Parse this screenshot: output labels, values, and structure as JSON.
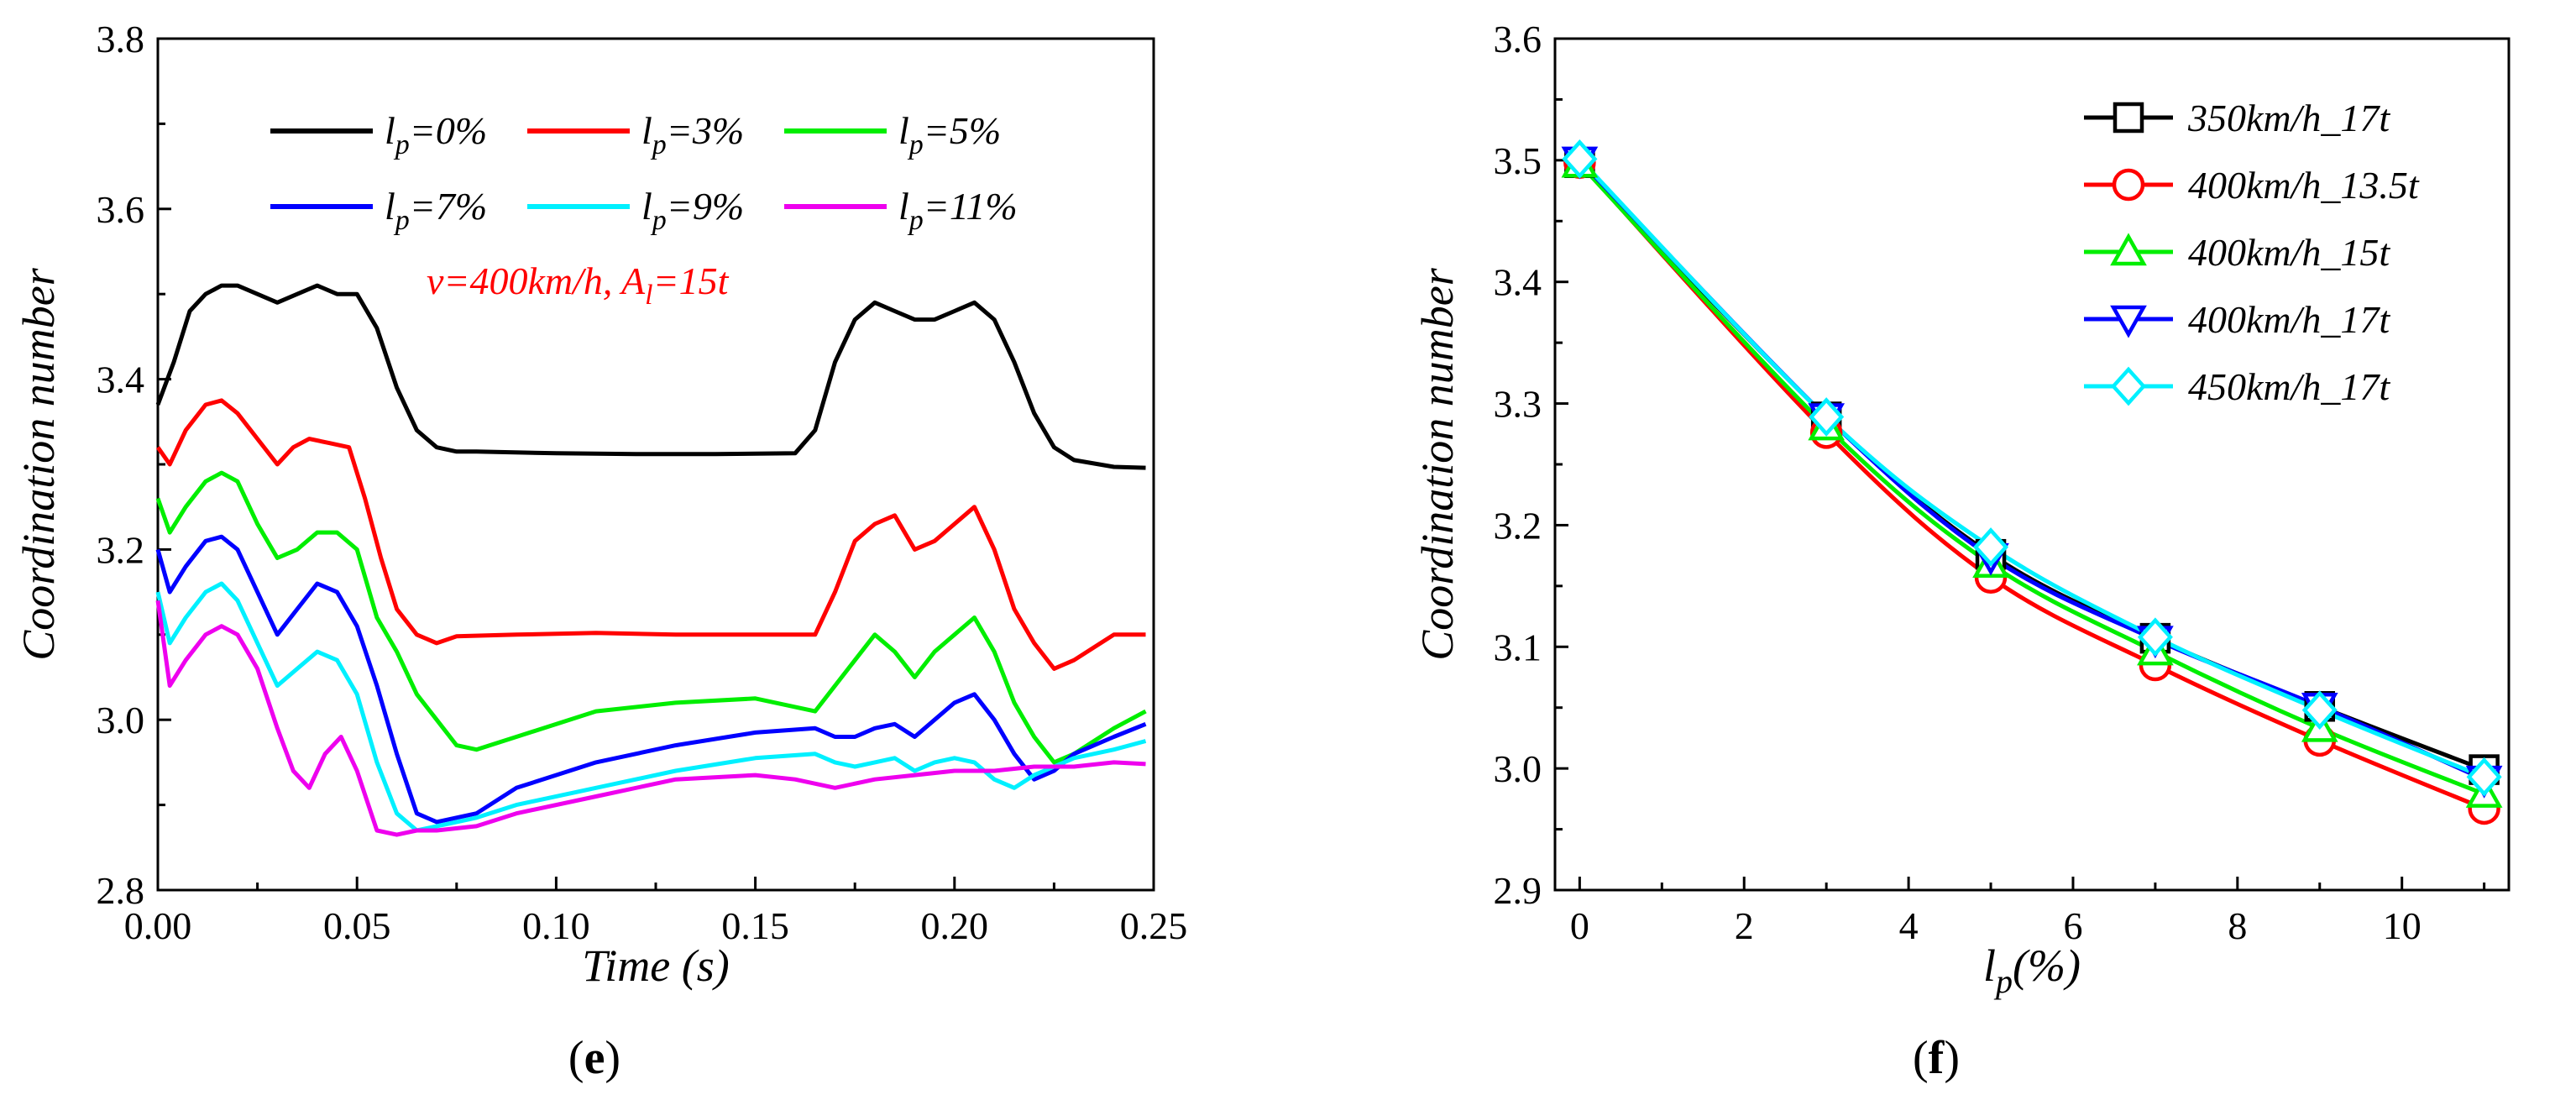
{
  "chart_data": [
    {
      "type": "line",
      "panel": "e",
      "ylabel": "Coordination number",
      "xlabel": "Time (s)",
      "xlim": [
        0,
        0.25
      ],
      "ylim": [
        2.8,
        3.8
      ],
      "xticks": [
        "0.00",
        "0.05",
        "0.10",
        "0.15",
        "0.20",
        "0.25"
      ],
      "yticks": [
        "2.8",
        "3.0",
        "3.2",
        "3.4",
        "3.6",
        "3.8"
      ],
      "legend_loc": "top",
      "annotation": {
        "pre": "v=400km/h, A",
        "sub": "l",
        "post": "=15t"
      },
      "series": [
        {
          "name": "lp=0%",
          "label_pre": "l",
          "label_sub": "p",
          "label_post": "=0%",
          "color": "#000000",
          "x": [
            0,
            0.004,
            0.008,
            0.012,
            0.016,
            0.02,
            0.025,
            0.03,
            0.035,
            0.04,
            0.045,
            0.05,
            0.055,
            0.06,
            0.065,
            0.07,
            0.075,
            0.08,
            0.1,
            0.12,
            0.14,
            0.16,
            0.165,
            0.17,
            0.175,
            0.18,
            0.185,
            0.19,
            0.195,
            0.2,
            0.205,
            0.21,
            0.215,
            0.22,
            0.225,
            0.23,
            0.24,
            0.248
          ],
          "y": [
            3.37,
            3.42,
            3.48,
            3.5,
            3.51,
            3.51,
            3.5,
            3.49,
            3.5,
            3.51,
            3.5,
            3.5,
            3.46,
            3.39,
            3.34,
            3.32,
            3.315,
            3.315,
            3.313,
            3.312,
            3.312,
            3.313,
            3.34,
            3.42,
            3.47,
            3.49,
            3.48,
            3.47,
            3.47,
            3.48,
            3.49,
            3.47,
            3.42,
            3.36,
            3.32,
            3.305,
            3.297,
            3.296
          ]
        },
        {
          "name": "lp=3%",
          "label_pre": "l",
          "label_sub": "p",
          "label_post": "=3%",
          "color": "#ff0000",
          "x": [
            0,
            0.003,
            0.007,
            0.012,
            0.016,
            0.02,
            0.025,
            0.03,
            0.034,
            0.038,
            0.043,
            0.048,
            0.052,
            0.056,
            0.06,
            0.065,
            0.07,
            0.075,
            0.09,
            0.11,
            0.13,
            0.15,
            0.165,
            0.17,
            0.175,
            0.18,
            0.185,
            0.19,
            0.195,
            0.2,
            0.205,
            0.21,
            0.215,
            0.22,
            0.225,
            0.23,
            0.24,
            0.248
          ],
          "y": [
            3.32,
            3.3,
            3.34,
            3.37,
            3.375,
            3.36,
            3.33,
            3.3,
            3.32,
            3.33,
            3.325,
            3.32,
            3.26,
            3.19,
            3.13,
            3.1,
            3.09,
            3.098,
            3.1,
            3.102,
            3.1,
            3.1,
            3.1,
            3.15,
            3.21,
            3.23,
            3.24,
            3.2,
            3.21,
            3.23,
            3.25,
            3.2,
            3.13,
            3.09,
            3.06,
            3.07,
            3.1,
            3.1
          ]
        },
        {
          "name": "lp=5%",
          "label_pre": "l",
          "label_sub": "p",
          "label_post": "=5%",
          "color": "#00ee00",
          "x": [
            0,
            0.003,
            0.007,
            0.012,
            0.016,
            0.02,
            0.025,
            0.03,
            0.035,
            0.04,
            0.045,
            0.05,
            0.055,
            0.06,
            0.065,
            0.07,
            0.075,
            0.08,
            0.09,
            0.11,
            0.13,
            0.15,
            0.165,
            0.17,
            0.175,
            0.18,
            0.185,
            0.19,
            0.195,
            0.2,
            0.205,
            0.21,
            0.215,
            0.22,
            0.225,
            0.23,
            0.24,
            0.248
          ],
          "y": [
            3.26,
            3.22,
            3.25,
            3.28,
            3.29,
            3.28,
            3.23,
            3.19,
            3.2,
            3.22,
            3.22,
            3.2,
            3.12,
            3.08,
            3.03,
            3.0,
            2.97,
            2.965,
            2.98,
            3.01,
            3.02,
            3.025,
            3.01,
            3.04,
            3.07,
            3.1,
            3.08,
            3.05,
            3.08,
            3.1,
            3.12,
            3.08,
            3.02,
            2.98,
            2.95,
            2.96,
            2.99,
            3.01
          ]
        },
        {
          "name": "lp=7%",
          "label_pre": "l",
          "label_sub": "p",
          "label_post": "=7%",
          "color": "#0000ff",
          "x": [
            0,
            0.003,
            0.007,
            0.012,
            0.016,
            0.02,
            0.025,
            0.03,
            0.035,
            0.04,
            0.045,
            0.05,
            0.055,
            0.06,
            0.065,
            0.07,
            0.075,
            0.08,
            0.09,
            0.11,
            0.13,
            0.15,
            0.165,
            0.17,
            0.175,
            0.18,
            0.185,
            0.19,
            0.195,
            0.2,
            0.205,
            0.21,
            0.215,
            0.22,
            0.225,
            0.23,
            0.24,
            0.248
          ],
          "y": [
            3.2,
            3.15,
            3.18,
            3.21,
            3.215,
            3.2,
            3.15,
            3.1,
            3.13,
            3.16,
            3.15,
            3.11,
            3.04,
            2.96,
            2.89,
            2.88,
            2.885,
            2.89,
            2.92,
            2.95,
            2.97,
            2.985,
            2.99,
            2.98,
            2.98,
            2.99,
            2.995,
            2.98,
            3.0,
            3.02,
            3.03,
            3.0,
            2.96,
            2.93,
            2.94,
            2.96,
            2.98,
            2.995
          ]
        },
        {
          "name": "lp=9%",
          "label_pre": "l",
          "label_sub": "p",
          "label_post": "=9%",
          "color": "#00f0ff",
          "x": [
            0,
            0.003,
            0.007,
            0.012,
            0.016,
            0.02,
            0.025,
            0.03,
            0.035,
            0.04,
            0.045,
            0.05,
            0.055,
            0.06,
            0.065,
            0.07,
            0.075,
            0.08,
            0.09,
            0.11,
            0.13,
            0.15,
            0.165,
            0.17,
            0.175,
            0.18,
            0.185,
            0.19,
            0.195,
            0.2,
            0.205,
            0.21,
            0.215,
            0.22,
            0.225,
            0.23,
            0.24,
            0.248
          ],
          "y": [
            3.15,
            3.09,
            3.12,
            3.15,
            3.16,
            3.14,
            3.09,
            3.04,
            3.06,
            3.08,
            3.07,
            3.03,
            2.95,
            2.89,
            2.87,
            2.875,
            2.88,
            2.885,
            2.9,
            2.92,
            2.94,
            2.955,
            2.96,
            2.95,
            2.945,
            2.95,
            2.955,
            2.94,
            2.95,
            2.955,
            2.95,
            2.93,
            2.92,
            2.935,
            2.945,
            2.955,
            2.965,
            2.975
          ]
        },
        {
          "name": "lp=11%",
          "label_pre": "l",
          "label_sub": "p",
          "label_post": "=11%",
          "color": "#ee00ee",
          "x": [
            0,
            0.003,
            0.007,
            0.012,
            0.016,
            0.02,
            0.025,
            0.03,
            0.034,
            0.038,
            0.042,
            0.046,
            0.05,
            0.055,
            0.06,
            0.065,
            0.07,
            0.08,
            0.09,
            0.11,
            0.13,
            0.15,
            0.16,
            0.17,
            0.18,
            0.19,
            0.2,
            0.21,
            0.22,
            0.23,
            0.24,
            0.248
          ],
          "y": [
            3.14,
            3.04,
            3.07,
            3.1,
            3.11,
            3.1,
            3.06,
            2.99,
            2.94,
            2.92,
            2.96,
            2.98,
            2.94,
            2.87,
            2.865,
            2.87,
            2.87,
            2.875,
            2.89,
            2.91,
            2.93,
            2.935,
            2.93,
            2.92,
            2.93,
            2.935,
            2.94,
            2.94,
            2.945,
            2.945,
            2.95,
            2.948
          ]
        }
      ]
    },
    {
      "type": "line",
      "panel": "f",
      "ylabel": "Coordination number",
      "xlabel": {
        "pre": "l",
        "sub": "p",
        "post": "(%)"
      },
      "xlim": [
        -0.3,
        11.3
      ],
      "ylim": [
        2.9,
        3.6
      ],
      "xticks": [
        "0",
        "2",
        "4",
        "6",
        "8",
        "10"
      ],
      "yticks": [
        "2.9",
        "3.0",
        "3.1",
        "3.2",
        "3.3",
        "3.4",
        "3.5",
        "3.6"
      ],
      "legend_loc": "top-right",
      "x": [
        0,
        3,
        5,
        7,
        9,
        11
      ],
      "series": [
        {
          "name": "350km/h_17t",
          "color": "#000000",
          "marker": "square",
          "values": [
            3.498,
            3.289,
            3.176,
            3.107,
            3.051,
            2.999
          ]
        },
        {
          "name": "400km/h_13.5t",
          "color": "#ff0000",
          "marker": "circle",
          "values": [
            3.498,
            3.276,
            3.157,
            3.085,
            3.023,
            2.967
          ]
        },
        {
          "name": "400km/h_15t",
          "color": "#00ee00",
          "marker": "triangle-up",
          "values": [
            3.497,
            3.281,
            3.168,
            3.096,
            3.033,
            2.979
          ]
        },
        {
          "name": "400km/h_17t",
          "color": "#0000ff",
          "marker": "triangle-down",
          "values": [
            3.5,
            3.289,
            3.174,
            3.106,
            3.051,
            2.991
          ]
        },
        {
          "name": "450km/h_17t",
          "color": "#00f0ff",
          "marker": "diamond",
          "values": [
            3.501,
            3.289,
            3.182,
            3.108,
            3.048,
            2.993
          ]
        }
      ]
    }
  ],
  "labels": {
    "panel_e": "e",
    "panel_f": "f"
  }
}
